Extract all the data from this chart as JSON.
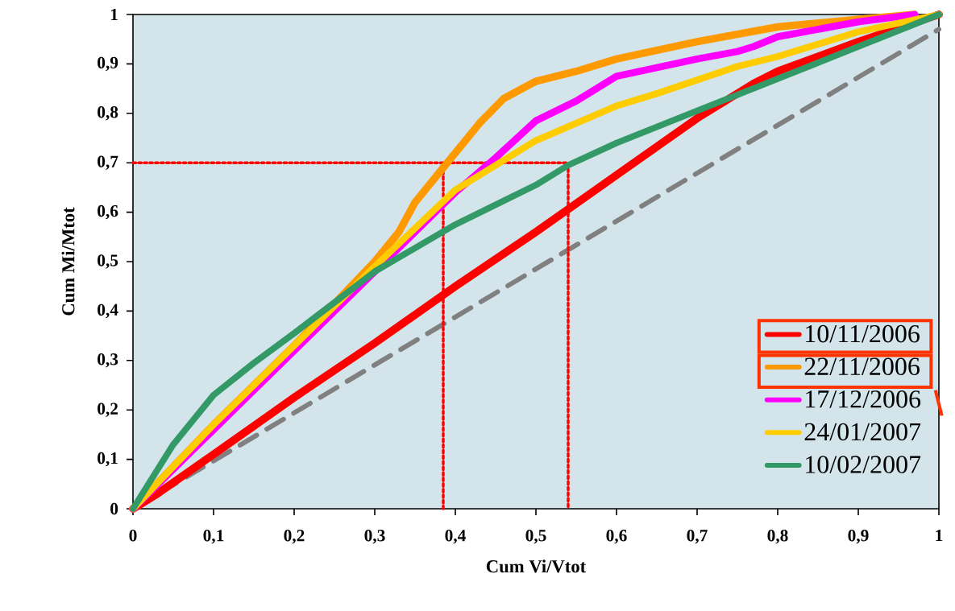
{
  "chart_data": {
    "type": "line",
    "xlabel": "Cum Vi/Vtot",
    "ylabel": "Cum Mi/Mtot",
    "xlim": [
      0,
      1
    ],
    "ylim": [
      0,
      1
    ],
    "xticks": [
      0,
      {
        "value": 0.1,
        "label": "0,1"
      },
      {
        "value": 0.2,
        "label": "0,2"
      },
      {
        "value": 0.3,
        "label": "0,3"
      },
      {
        "value": 0.4,
        "label": "0,4"
      },
      {
        "value": 0.5,
        "label": "0,5"
      },
      {
        "value": 0.6,
        "label": "0,6"
      },
      {
        "value": 0.7,
        "label": "0,7"
      },
      {
        "value": 0.8,
        "label": "0,8"
      },
      {
        "value": 0.9,
        "label": "0,9"
      },
      1
    ],
    "yticks": [
      0,
      {
        "value": 0.1,
        "label": "0,1"
      },
      {
        "value": 0.2,
        "label": "0,2"
      },
      {
        "value": 0.3,
        "label": "0,3"
      },
      {
        "value": 0.4,
        "label": "0,4"
      },
      {
        "value": 0.5,
        "label": "0,5"
      },
      {
        "value": 0.6,
        "label": "0,6"
      },
      {
        "value": 0.7,
        "label": "0,7"
      },
      {
        "value": 0.8,
        "label": "0,8"
      },
      {
        "value": 0.9,
        "label": "0,9"
      },
      1
    ],
    "legend": "right",
    "series": [
      {
        "name": "10/11/2006",
        "color": "#ff0000",
        "x": [
          0,
          0.03,
          0.1,
          0.2,
          0.3,
          0.4,
          0.5,
          0.6,
          0.7,
          0.77,
          0.8,
          0.9,
          1
        ],
        "values": [
          0,
          0.03,
          0.11,
          0.225,
          0.335,
          0.45,
          0.56,
          0.675,
          0.79,
          0.86,
          0.885,
          0.945,
          1
        ]
      },
      {
        "name": "22/11/2006",
        "color": "#ff9900",
        "x": [
          0,
          0.1,
          0.2,
          0.3,
          0.33,
          0.35,
          0.38,
          0.4,
          0.43,
          0.46,
          0.5,
          0.55,
          0.6,
          0.7,
          0.8,
          0.9,
          0.97
        ],
        "values": [
          0,
          0.17,
          0.33,
          0.5,
          0.56,
          0.62,
          0.68,
          0.72,
          0.78,
          0.83,
          0.865,
          0.885,
          0.91,
          0.945,
          0.975,
          0.99,
          1
        ]
      },
      {
        "name": "17/12/2006",
        "color": "#ff00ff",
        "x": [
          0,
          0.1,
          0.2,
          0.3,
          0.4,
          0.45,
          0.5,
          0.55,
          0.57,
          0.6,
          0.7,
          0.75,
          0.77,
          0.8,
          0.9,
          0.97
        ],
        "values": [
          0,
          0.16,
          0.32,
          0.48,
          0.64,
          0.71,
          0.785,
          0.825,
          0.845,
          0.875,
          0.91,
          0.925,
          0.935,
          0.955,
          0.985,
          1
        ]
      },
      {
        "name": "24/01/2007",
        "color": "#ffcc00",
        "x": [
          0,
          0.1,
          0.2,
          0.3,
          0.4,
          0.5,
          0.6,
          0.65,
          0.75,
          0.8,
          0.9,
          1
        ],
        "values": [
          0,
          0.17,
          0.33,
          0.49,
          0.645,
          0.745,
          0.815,
          0.84,
          0.895,
          0.915,
          0.965,
          1
        ]
      },
      {
        "name": "10/02/2007",
        "color": "#339966",
        "x": [
          0,
          0.05,
          0.1,
          0.15,
          0.2,
          0.3,
          0.4,
          0.5,
          0.54,
          0.6,
          0.7,
          0.8,
          0.9,
          1
        ],
        "values": [
          0,
          0.13,
          0.23,
          0.295,
          0.355,
          0.48,
          0.575,
          0.655,
          0.695,
          0.74,
          0.805,
          0.87,
          0.935,
          1
        ]
      },
      {
        "color": "#808080",
        "line_style": "dashed",
        "x": [
          0,
          1
        ],
        "values": [
          0,
          0.97
        ]
      },
      {
        "color": "#ff0000",
        "line_style": "dotted",
        "x": [
          0,
          0.54,
          0.54
        ],
        "values": [
          0.7,
          0.7,
          0
        ]
      },
      {
        "color": "#ff0000",
        "line_style": "dotted",
        "x": [
          0.385,
          0.385
        ],
        "values": [
          0,
          0.7
        ]
      }
    ]
  }
}
